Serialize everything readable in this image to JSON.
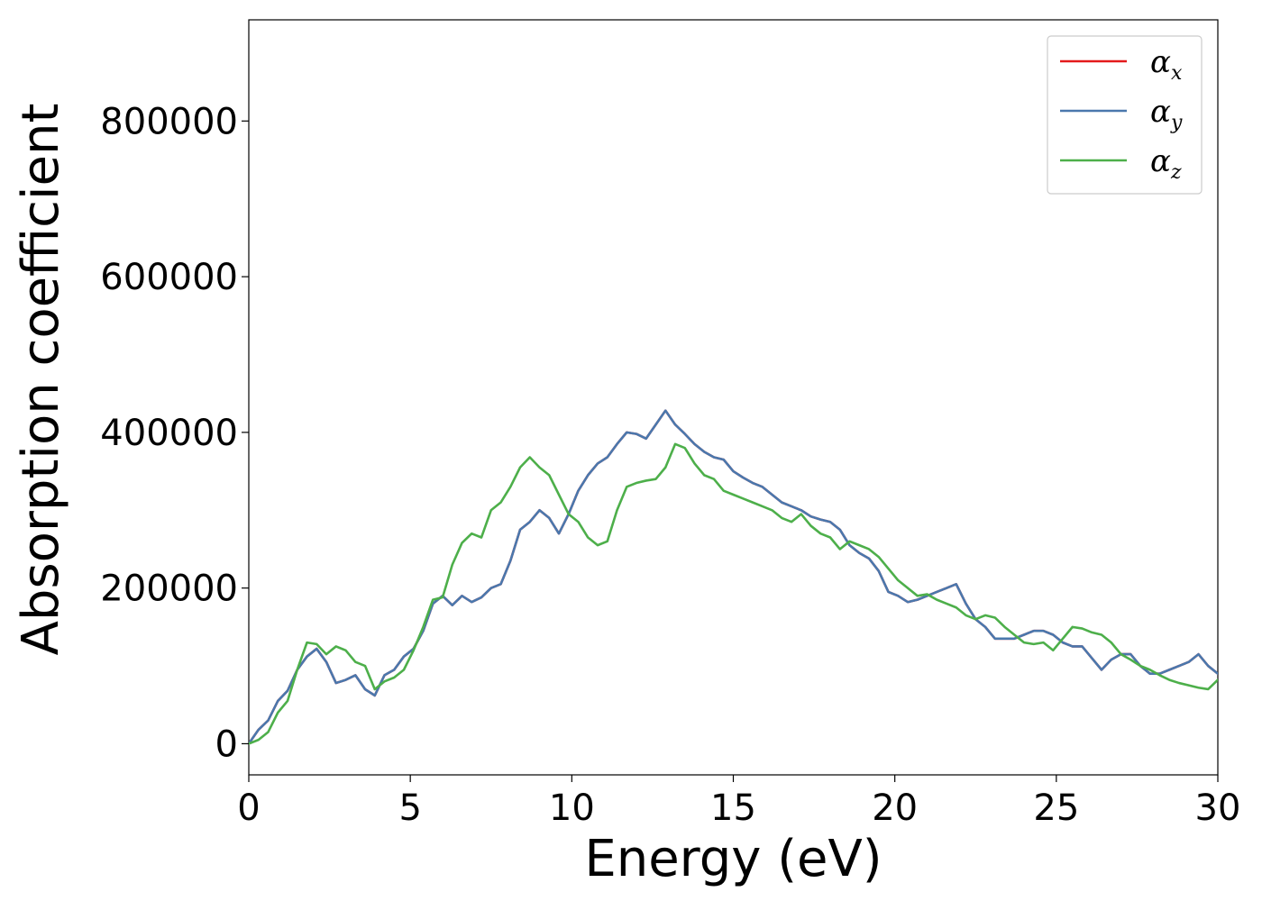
{
  "chart_data": {
    "type": "line",
    "xlabel": "Energy (eV)",
    "ylabel": "Absorption coefficient",
    "xlim": [
      0,
      30
    ],
    "ylim": [
      -40000,
      930000
    ],
    "x_ticks": [
      0,
      5,
      10,
      15,
      20,
      25,
      30
    ],
    "y_ticks": [
      0,
      200000,
      400000,
      600000,
      800000
    ],
    "x_tick_labels": [
      "0",
      "5",
      "10",
      "15",
      "20",
      "25",
      "30"
    ],
    "y_tick_labels": [
      "0",
      "200000",
      "400000",
      "600000",
      "800000"
    ],
    "grid": false,
    "legend_position": "top-right",
    "legend": [
      {
        "symbol": "α",
        "sub": "x",
        "color": "#e41a1c"
      },
      {
        "symbol": "α",
        "sub": "y",
        "color": "#4a78ad"
      },
      {
        "symbol": "α",
        "sub": "z",
        "color": "#4daf4a"
      }
    ],
    "series": [
      {
        "name": "αx",
        "color": "#e41a1c",
        "x": [
          0,
          0.3,
          0.6,
          0.9,
          1.2,
          1.5,
          1.8,
          2.1,
          2.4,
          2.7,
          3.0,
          3.3,
          3.6,
          3.9,
          4.2,
          4.5,
          4.8,
          5.1,
          5.4,
          5.7,
          6.0,
          6.3,
          6.6,
          6.9,
          7.2,
          7.5,
          7.8,
          8.1,
          8.4,
          8.7,
          9.0,
          9.3,
          9.6,
          9.9,
          10.2,
          10.5,
          10.8,
          11.1,
          11.4,
          11.7,
          12.0,
          12.3,
          12.6,
          12.9,
          13.2,
          13.5,
          13.8,
          14.1,
          14.4,
          14.7,
          15.0,
          15.3,
          15.6,
          15.9,
          16.2,
          16.5,
          16.8,
          17.1,
          17.4,
          17.7,
          18.0,
          18.3,
          18.6,
          18.9,
          19.2,
          19.5,
          19.8,
          20.1,
          20.4,
          20.7,
          21.0,
          21.3,
          21.6,
          21.9,
          22.2,
          22.5,
          22.8,
          23.1,
          23.4,
          23.7,
          24.0,
          24.3,
          24.6,
          24.9,
          25.2,
          25.5,
          25.8,
          26.1,
          26.4,
          26.7,
          27.0,
          27.3,
          27.6,
          27.9,
          28.2,
          28.5,
          28.8,
          29.1,
          29.4,
          29.7,
          30.0
        ],
        "values": [
          0,
          18000,
          30000,
          55000,
          68000,
          95000,
          112000,
          122000,
          105000,
          78000,
          82000,
          88000,
          70000,
          62000,
          88000,
          95000,
          112000,
          122000,
          145000,
          180000,
          190000,
          178000,
          190000,
          182000,
          188000,
          200000,
          205000,
          235000,
          275000,
          285000,
          300000,
          290000,
          270000,
          295000,
          325000,
          345000,
          360000,
          368000,
          385000,
          400000,
          398000,
          392000,
          410000,
          428000,
          410000,
          398000,
          385000,
          375000,
          368000,
          365000,
          350000,
          342000,
          335000,
          330000,
          320000,
          310000,
          305000,
          300000,
          292000,
          288000,
          285000,
          275000,
          255000,
          245000,
          238000,
          222000,
          195000,
          190000,
          182000,
          185000,
          190000,
          195000,
          200000,
          205000,
          180000,
          160000,
          150000,
          135000,
          135000,
          135000,
          140000,
          145000,
          145000,
          140000,
          130000,
          125000,
          125000,
          110000,
          95000,
          108000,
          115000,
          115000,
          100000,
          90000,
          90000,
          95000,
          100000,
          105000,
          115000,
          100000,
          90000
        ]
      },
      {
        "name": "αy",
        "color": "#4a78ad",
        "x": [
          0,
          0.3,
          0.6,
          0.9,
          1.2,
          1.5,
          1.8,
          2.1,
          2.4,
          2.7,
          3.0,
          3.3,
          3.6,
          3.9,
          4.2,
          4.5,
          4.8,
          5.1,
          5.4,
          5.7,
          6.0,
          6.3,
          6.6,
          6.9,
          7.2,
          7.5,
          7.8,
          8.1,
          8.4,
          8.7,
          9.0,
          9.3,
          9.6,
          9.9,
          10.2,
          10.5,
          10.8,
          11.1,
          11.4,
          11.7,
          12.0,
          12.3,
          12.6,
          12.9,
          13.2,
          13.5,
          13.8,
          14.1,
          14.4,
          14.7,
          15.0,
          15.3,
          15.6,
          15.9,
          16.2,
          16.5,
          16.8,
          17.1,
          17.4,
          17.7,
          18.0,
          18.3,
          18.6,
          18.9,
          19.2,
          19.5,
          19.8,
          20.1,
          20.4,
          20.7,
          21.0,
          21.3,
          21.6,
          21.9,
          22.2,
          22.5,
          22.8,
          23.1,
          23.4,
          23.7,
          24.0,
          24.3,
          24.6,
          24.9,
          25.2,
          25.5,
          25.8,
          26.1,
          26.4,
          26.7,
          27.0,
          27.3,
          27.6,
          27.9,
          28.2,
          28.5,
          28.8,
          29.1,
          29.4,
          29.7,
          30.0
        ],
        "values": [
          0,
          18000,
          30000,
          55000,
          68000,
          95000,
          112000,
          122000,
          105000,
          78000,
          82000,
          88000,
          70000,
          62000,
          88000,
          95000,
          112000,
          122000,
          145000,
          180000,
          190000,
          178000,
          190000,
          182000,
          188000,
          200000,
          205000,
          235000,
          275000,
          285000,
          300000,
          290000,
          270000,
          295000,
          325000,
          345000,
          360000,
          368000,
          385000,
          400000,
          398000,
          392000,
          410000,
          428000,
          410000,
          398000,
          385000,
          375000,
          368000,
          365000,
          350000,
          342000,
          335000,
          330000,
          320000,
          310000,
          305000,
          300000,
          292000,
          288000,
          285000,
          275000,
          255000,
          245000,
          238000,
          222000,
          195000,
          190000,
          182000,
          185000,
          190000,
          195000,
          200000,
          205000,
          180000,
          160000,
          150000,
          135000,
          135000,
          135000,
          140000,
          145000,
          145000,
          140000,
          130000,
          125000,
          125000,
          110000,
          95000,
          108000,
          115000,
          115000,
          100000,
          90000,
          90000,
          95000,
          100000,
          105000,
          115000,
          100000,
          90000
        ]
      },
      {
        "name": "αz",
        "color": "#4daf4a",
        "x": [
          0,
          0.3,
          0.6,
          0.9,
          1.2,
          1.5,
          1.8,
          2.1,
          2.4,
          2.7,
          3.0,
          3.3,
          3.6,
          3.9,
          4.2,
          4.5,
          4.8,
          5.1,
          5.4,
          5.7,
          6.0,
          6.3,
          6.6,
          6.9,
          7.2,
          7.5,
          7.8,
          8.1,
          8.4,
          8.7,
          9.0,
          9.3,
          9.6,
          9.9,
          10.2,
          10.5,
          10.8,
          11.1,
          11.4,
          11.7,
          12.0,
          12.3,
          12.6,
          12.9,
          13.2,
          13.5,
          13.8,
          14.1,
          14.4,
          14.7,
          15.0,
          15.3,
          15.6,
          15.9,
          16.2,
          16.5,
          16.8,
          17.1,
          17.4,
          17.7,
          18.0,
          18.3,
          18.6,
          18.9,
          19.2,
          19.5,
          19.8,
          20.1,
          20.4,
          20.7,
          21.0,
          21.3,
          21.6,
          21.9,
          22.2,
          22.5,
          22.8,
          23.1,
          23.4,
          23.7,
          24.0,
          24.3,
          24.6,
          24.9,
          25.2,
          25.5,
          25.8,
          26.1,
          26.4,
          26.7,
          27.0,
          27.3,
          27.6,
          27.9,
          28.2,
          28.5,
          28.8,
          29.1,
          29.4,
          29.7,
          30.0
        ],
        "values": [
          0,
          5000,
          15000,
          40000,
          55000,
          95000,
          130000,
          128000,
          115000,
          125000,
          120000,
          105000,
          100000,
          70000,
          80000,
          85000,
          95000,
          120000,
          150000,
          185000,
          188000,
          230000,
          258000,
          270000,
          265000,
          300000,
          310000,
          330000,
          355000,
          368000,
          355000,
          345000,
          320000,
          295000,
          285000,
          265000,
          255000,
          260000,
          300000,
          330000,
          335000,
          338000,
          340000,
          355000,
          385000,
          380000,
          360000,
          345000,
          340000,
          325000,
          320000,
          315000,
          310000,
          305000,
          300000,
          290000,
          285000,
          295000,
          280000,
          270000,
          265000,
          250000,
          260000,
          255000,
          250000,
          240000,
          225000,
          210000,
          200000,
          190000,
          192000,
          185000,
          180000,
          175000,
          165000,
          160000,
          165000,
          162000,
          150000,
          140000,
          130000,
          128000,
          130000,
          120000,
          135000,
          150000,
          148000,
          143000,
          140000,
          130000,
          115000,
          108000,
          100000,
          95000,
          88000,
          82000,
          78000,
          75000,
          72000,
          70000,
          82000
        ]
      }
    ]
  }
}
